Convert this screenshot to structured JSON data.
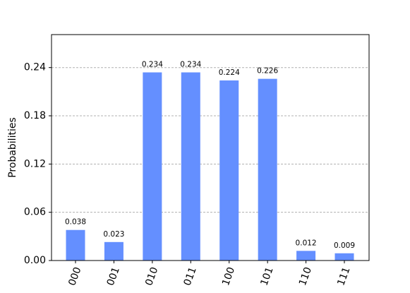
{
  "chart_data": {
    "type": "bar",
    "y_label": "Probabilities",
    "categories": [
      "000",
      "001",
      "010",
      "011",
      "100",
      "101",
      "110",
      "111"
    ],
    "values": [
      0.038,
      0.023,
      0.234,
      0.234,
      0.224,
      0.226,
      0.012,
      0.009
    ],
    "color": "#648fff",
    "ylim": [
      0,
      0.281
    ],
    "yticks": [
      {
        "value": 0,
        "label": "0.00"
      },
      0.06,
      0.12,
      0.18,
      0.24
    ],
    "grid": true
  }
}
